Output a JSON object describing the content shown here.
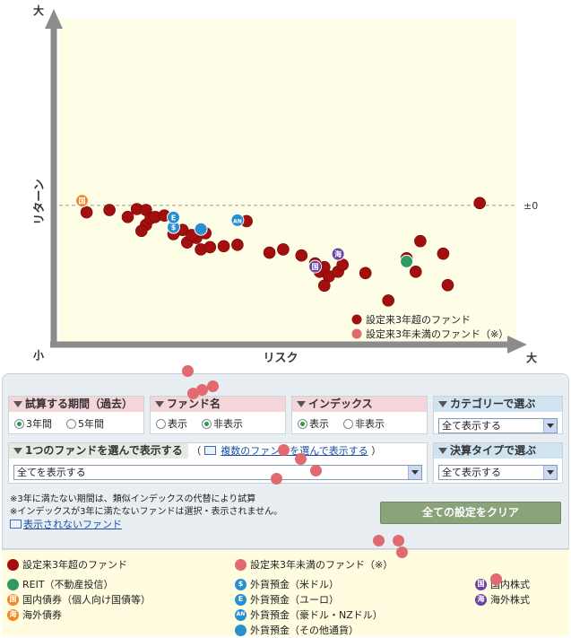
{
  "chart_data": {
    "type": "scatter",
    "xlabel": "リスク",
    "ylabel": "リターン",
    "x_min_label": "小",
    "x_max_label": "大",
    "y_min_label": "小",
    "y_max_label": "大",
    "ref_line_label": "±0",
    "xlim": [
      0,
      100
    ],
    "ylim": [
      -30,
      40
    ],
    "colors": {
      "plot_bg": "#fefde6",
      "axis": "#8c8c8c",
      "fund_over3": "#a30e0e",
      "fund_under3": "#e06a70",
      "reit": "#2e9a63",
      "domestic_bond": "#f08a24",
      "foreign_bond": "#f08a24",
      "fx_deposit": "#2a8fcf",
      "domestic_stock": "#6a44a0",
      "foreign_stock": "#6a44a0"
    },
    "series": [
      {
        "name": "設定来3年超のファンド",
        "marker": "fund_over3",
        "points": [
          [
            6,
            -1.5
          ],
          [
            11,
            -1
          ],
          [
            15,
            -2.5
          ],
          [
            17,
            -0.8
          ],
          [
            19,
            -1
          ],
          [
            19,
            -4.2
          ],
          [
            18,
            -5.5
          ],
          [
            20,
            -2.8
          ],
          [
            21,
            -2.5
          ],
          [
            23,
            -2.2
          ],
          [
            25,
            -6.2
          ],
          [
            27,
            -5.3
          ],
          [
            28,
            -8
          ],
          [
            30,
            -7
          ],
          [
            32,
            -6
          ],
          [
            29,
            -6.4
          ],
          [
            31,
            -9.5
          ],
          [
            33,
            -9
          ],
          [
            36,
            -8.8
          ],
          [
            39,
            -8.5
          ],
          [
            41,
            -3.4
          ],
          [
            46,
            -10.2
          ],
          [
            49,
            -9.5
          ],
          [
            53,
            -10.8
          ],
          [
            56,
            -12.5
          ],
          [
            57,
            -14.3
          ],
          [
            58,
            -13.3
          ],
          [
            59,
            -15.3
          ],
          [
            61,
            -14.3
          ],
          [
            62,
            -12.8
          ],
          [
            67,
            -14.6
          ],
          [
            58,
            -17.3
          ],
          [
            72,
            -20.5
          ],
          [
            76,
            -11.4
          ],
          [
            78,
            -14.3
          ],
          [
            79,
            -7.7
          ],
          [
            84,
            -10.4
          ],
          [
            85,
            -17.2
          ],
          [
            92,
            0.5
          ]
        ]
      },
      {
        "name": "設定来3年未満のファンド（※）",
        "marker": "fund_under3",
        "points": []
      },
      {
        "name": "REIT",
        "marker": "reit",
        "icon": "",
        "points": [
          [
            76,
            -12.1
          ]
        ]
      },
      {
        "name": "国内債券",
        "marker": "domestic_bond",
        "icon": "国",
        "points": [
          [
            5,
            1
          ]
        ]
      },
      {
        "name": "外貨預金(米ドル)",
        "marker": "fx_deposit",
        "icon": "$",
        "points": [
          [
            25,
            -4.7
          ]
        ]
      },
      {
        "name": "外貨預金(ユーロ)",
        "marker": "fx_deposit",
        "icon": "E",
        "points": [
          [
            25,
            -2.6
          ]
        ]
      },
      {
        "name": "外貨預金(豪ドル・NZドル)",
        "marker": "fx_deposit",
        "icon": "AN",
        "points": [
          [
            39,
            -3.2
          ]
        ]
      },
      {
        "name": "外貨預金(その他通貨)",
        "marker": "fx_deposit",
        "icon": "",
        "points": [
          [
            31,
            -5.1
          ]
        ]
      },
      {
        "name": "国内株式",
        "marker": "domestic_stock",
        "icon": "国",
        "points": [
          [
            56,
            -13.2
          ]
        ]
      },
      {
        "name": "海外株式",
        "marker": "foreign_stock",
        "icon": "海",
        "points": [
          [
            61,
            -10.5
          ]
        ]
      }
    ],
    "inline_legend": [
      {
        "label": "設定来3年超のファンド",
        "color": "#a30e0e"
      },
      {
        "label": "設定来3年未満のファンド（※）",
        "color": "#e06a70"
      }
    ]
  },
  "panel": {
    "period": {
      "title": "試算する期間（過去）",
      "options": [
        "3年間",
        "5年間"
      ],
      "selected": 0
    },
    "fund_name": {
      "title": "ファンド名",
      "options": [
        "表示",
        "非表示"
      ],
      "selected": 1
    },
    "index": {
      "title": "インデックス",
      "options": [
        "表示",
        "非表示"
      ],
      "selected": 0
    },
    "category": {
      "title": "カテゴリーで選ぶ",
      "value": "全て表示する"
    },
    "single_fund": {
      "title": "1つのファンドを選んで表示する",
      "paren_open": "（",
      "multi_link": "複数のファンドを選んで表示する",
      "paren_close": "）",
      "value": "全てを表示する"
    },
    "settlement": {
      "title": "決算タイプで選ぶ",
      "value": "全て表示する"
    },
    "notes": [
      "※3年に満たない期間は、類似インデックスの代替により試算",
      "※インデックスが3年に満たないファンドは選択・表示されません。"
    ],
    "hidden_funds_link": "表示されないファンド",
    "clear_button": "全ての設定をクリア"
  },
  "legend": {
    "fund_over3": "設定来3年超のファンド",
    "fund_under3": "設定来3年未満のファンド（※）",
    "reit": "REIT（不動産投信）",
    "domestic_bond": "国内債券（個人向け国債等）",
    "foreign_bond": "海外債券",
    "fx_usd": "外貨預金（米ドル）",
    "fx_eur": "外貨預金（ユーロ）",
    "fx_aud_nzd": "外貨預金（豪ドル・NZドル）",
    "fx_other": "外貨預金（その他通貨）",
    "domestic_stock": "国内株式",
    "foreign_stock": "海外株式",
    "icons": {
      "domestic": "国",
      "foreign": "海",
      "dollar": "$",
      "euro": "E",
      "aud_nzd": "AN"
    }
  }
}
